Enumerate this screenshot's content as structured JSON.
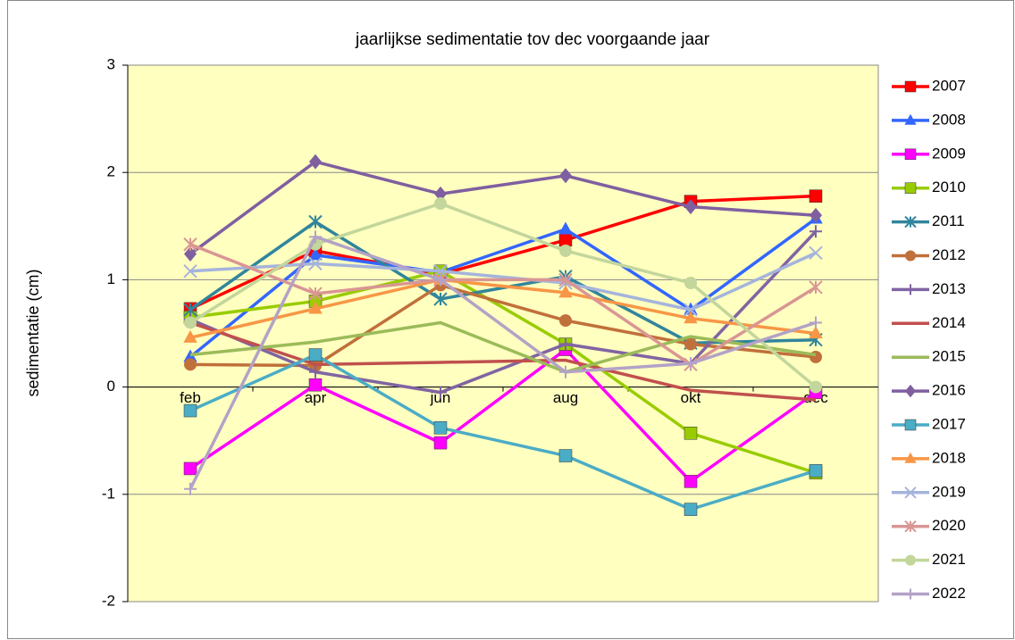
{
  "chart_data": {
    "type": "line",
    "title": "jaarlijkse sedimentatie tov dec voorgaande jaar",
    "y_label": "sedimentatie (cm)",
    "categories": [
      "feb",
      "apr",
      "jun",
      "aug",
      "okt",
      "dec"
    ],
    "ylim": [
      -2,
      3
    ],
    "yticks": [
      -2,
      -1,
      0,
      1,
      2,
      3
    ],
    "grid": true,
    "series": [
      {
        "name": "2007",
        "color": "#ff0000",
        "marker": "square",
        "values": [
          0.73,
          1.27,
          1.05,
          1.37,
          1.73,
          1.78
        ]
      },
      {
        "name": "2008",
        "color": "#3366ff",
        "marker": "triangle",
        "values": [
          0.28,
          1.23,
          1.07,
          1.47,
          0.72,
          1.57
        ]
      },
      {
        "name": "2009",
        "color": "#ff00ff",
        "marker": "square",
        "values": [
          -0.76,
          0.02,
          -0.52,
          0.35,
          -0.88,
          -0.05
        ]
      },
      {
        "name": "2010",
        "color": "#99cc00",
        "marker": "square",
        "values": [
          0.65,
          0.8,
          1.08,
          0.4,
          -0.43,
          -0.8
        ]
      },
      {
        "name": "2011",
        "color": "#31859c",
        "marker": "asterisk",
        "values": [
          0.72,
          1.54,
          0.82,
          1.03,
          0.41,
          0.44
        ]
      },
      {
        "name": "2012",
        "color": "#c0703a",
        "marker": "circle",
        "values": [
          0.21,
          0.2,
          0.95,
          0.62,
          0.4,
          0.28
        ]
      },
      {
        "name": "2013",
        "color": "#8064a2",
        "marker": "plus",
        "values": [
          0.63,
          0.14,
          -0.05,
          0.4,
          0.22,
          1.45
        ]
      },
      {
        "name": "2014",
        "color": "#c0504d",
        "marker": "none",
        "values": [
          0.6,
          0.21,
          0.23,
          0.25,
          -0.03,
          -0.12
        ]
      },
      {
        "name": "2015",
        "color": "#9bbb59",
        "marker": "none",
        "values": [
          0.3,
          0.42,
          0.6,
          0.14,
          0.47,
          0.3
        ]
      },
      {
        "name": "2016",
        "color": "#7f5fa0",
        "marker": "diamond",
        "values": [
          1.24,
          2.1,
          1.8,
          1.97,
          1.68,
          1.6
        ]
      },
      {
        "name": "2017",
        "color": "#4bacc6",
        "marker": "square",
        "values": [
          -0.22,
          0.3,
          -0.38,
          -0.64,
          -1.14,
          -0.78
        ]
      },
      {
        "name": "2018",
        "color": "#f79646",
        "marker": "triangle",
        "values": [
          0.46,
          0.73,
          1.0,
          0.88,
          0.64,
          0.5
        ]
      },
      {
        "name": "2019",
        "color": "#a5b4dc",
        "marker": "x",
        "values": [
          1.08,
          1.15,
          1.08,
          0.97,
          0.72,
          1.25
        ]
      },
      {
        "name": "2020",
        "color": "#d99694",
        "marker": "asterisk",
        "values": [
          1.33,
          0.87,
          1.0,
          1.0,
          0.21,
          0.93
        ]
      },
      {
        "name": "2021",
        "color": "#c3d69b",
        "marker": "circle",
        "values": [
          0.6,
          1.33,
          1.71,
          1.27,
          0.97,
          0.0
        ]
      },
      {
        "name": "2022",
        "color": "#b3a2c7",
        "marker": "plus",
        "values": [
          -0.95,
          1.4,
          1.0,
          0.14,
          0.22,
          0.6
        ]
      }
    ]
  }
}
